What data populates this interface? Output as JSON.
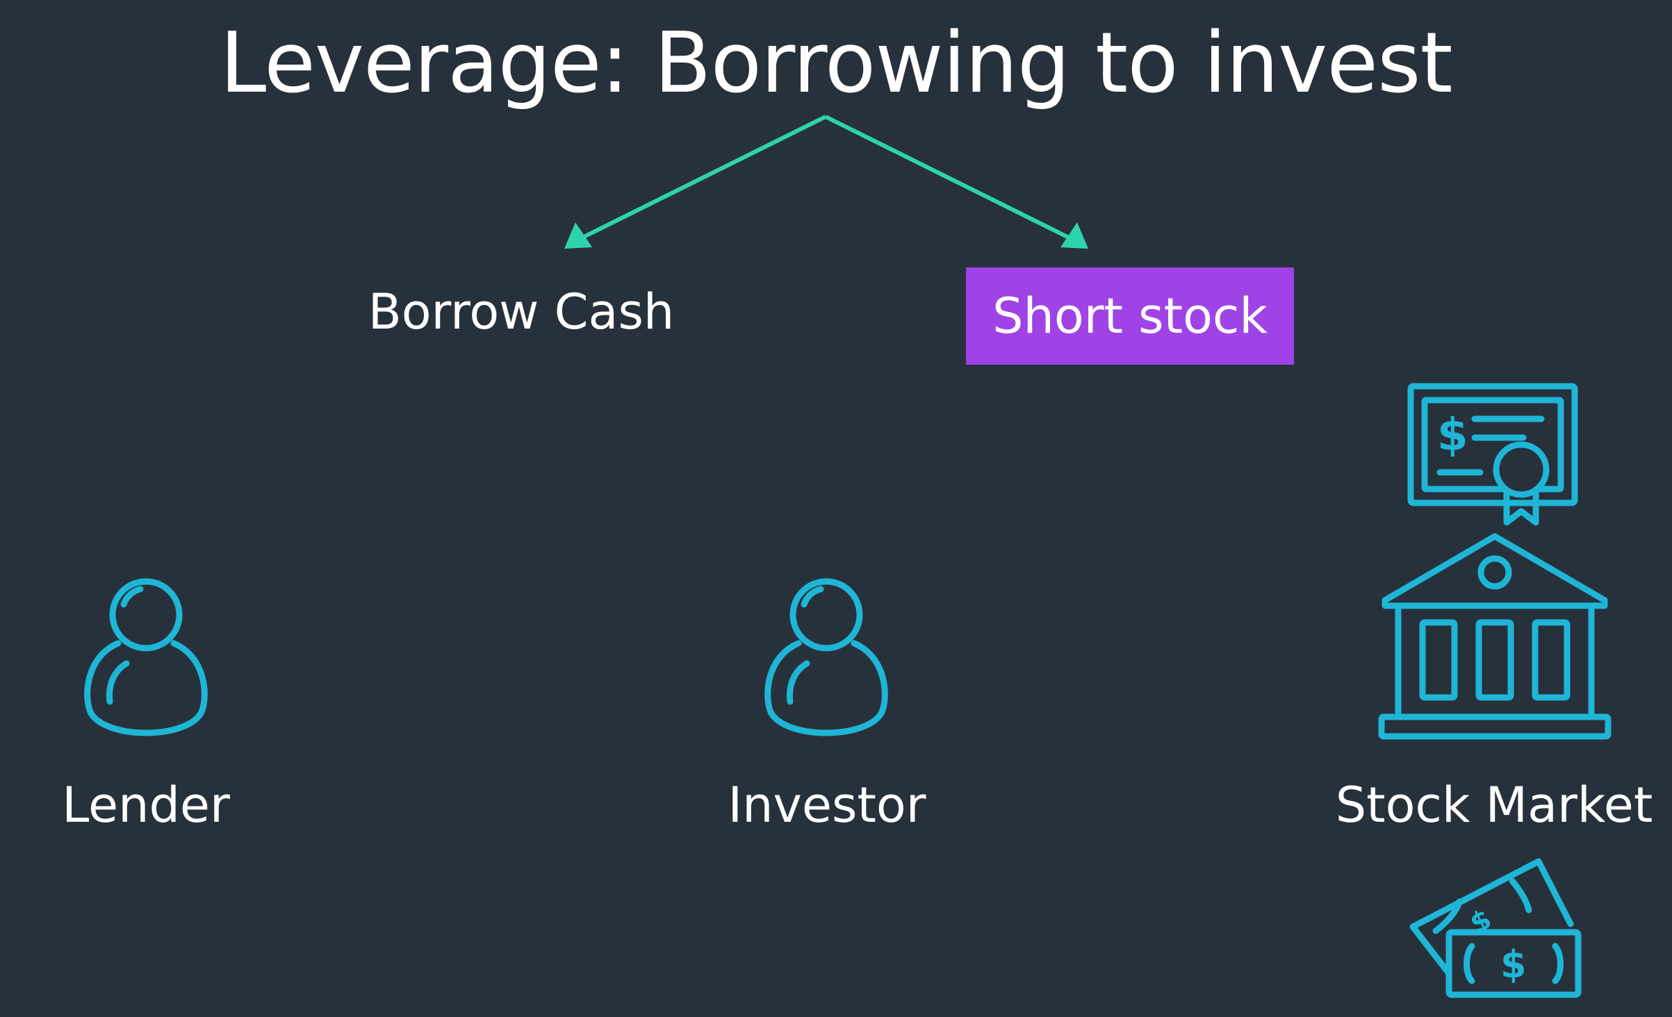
{
  "title": "Leverage: Borrowing to invest",
  "branches": {
    "left": "Borrow Cash",
    "right": "Short stock"
  },
  "actors": {
    "lender": "Lender",
    "investor": "Investor",
    "market": "Stock Market"
  },
  "icons": {
    "lender": "person-icon",
    "investor": "person-icon",
    "certificate": "stock-certificate-icon",
    "bank": "bank-building-icon",
    "cash": "cash-bills-icon"
  },
  "colors": {
    "background": "#27313b",
    "arrow": "#2ed3ad",
    "icon": "#1fb5d6",
    "highlight": "#a043e6",
    "text": "#ffffff"
  }
}
